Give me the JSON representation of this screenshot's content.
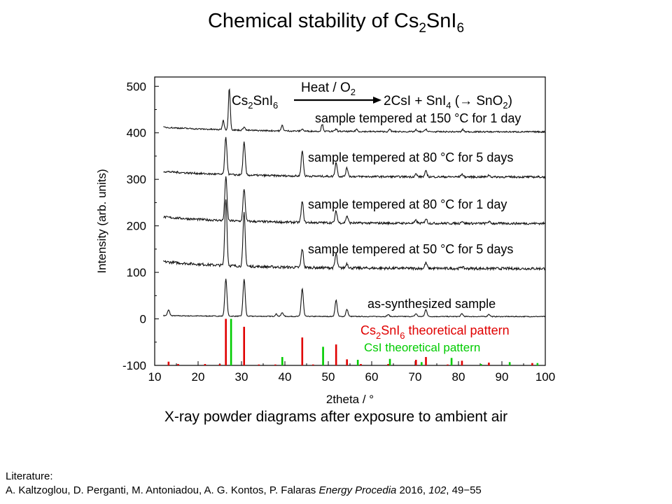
{
  "slide": {
    "title_main": "Chemical stability of Cs",
    "title_sub1": "2",
    "title_mid": "SnI",
    "title_sub2": "6",
    "caption": "X-ray powder diagrams after exposure to ambient air",
    "literature_label": "Literature:",
    "citation_authors": "A. Kaltzoglou, D. Perganti, M. Antoniadou, A. G. Kontos, P. Falaras ",
    "citation_journal": "Energy Procedia",
    "citation_year": " 2016, ",
    "citation_volume": "102",
    "citation_pages": ", 49−55"
  },
  "chart_data": {
    "type": "line",
    "xlabel": "2theta / °",
    "ylabel": "Intensity (arb. units)",
    "xlim": [
      10,
      100
    ],
    "ylim": [
      -100,
      520
    ],
    "xticks": [
      10,
      20,
      30,
      40,
      50,
      60,
      70,
      80,
      90,
      100
    ],
    "yticks": [
      -100,
      0,
      100,
      200,
      300,
      400,
      500
    ],
    "reaction": {
      "reactant": "Cs2SnI6",
      "arrow_label": "Heat / O2",
      "products": "2CsI + SnI4 (→ SnO2)"
    },
    "series": [
      {
        "name": "as-synthesized sample",
        "baseline": 5,
        "peaks": [
          [
            13.2,
            12
          ],
          [
            26.4,
            80
          ],
          [
            30.6,
            80
          ],
          [
            38.0,
            5
          ],
          [
            39.4,
            8
          ],
          [
            44.0,
            60
          ],
          [
            51.8,
            35
          ],
          [
            54.3,
            15
          ],
          [
            63.8,
            4
          ],
          [
            70.2,
            6
          ],
          [
            72.5,
            15
          ],
          [
            80.8,
            6
          ],
          [
            87.0,
            5
          ]
        ]
      },
      {
        "name": "sample tempered at 50 °C for 5 days",
        "baseline": 108,
        "peaks": [
          [
            26.4,
            145
          ],
          [
            30.6,
            115
          ],
          [
            44.0,
            40
          ],
          [
            51.8,
            30
          ],
          [
            54.3,
            10
          ],
          [
            72.5,
            12
          ],
          [
            80.8,
            4
          ]
        ]
      },
      {
        "name": "sample tempered at 80 °C for 1 day",
        "baseline": 205,
        "peaks": [
          [
            26.4,
            95
          ],
          [
            30.6,
            70
          ],
          [
            44.0,
            45
          ],
          [
            51.8,
            25
          ],
          [
            54.3,
            15
          ],
          [
            70.2,
            6
          ],
          [
            72.5,
            10
          ],
          [
            80.8,
            5
          ],
          [
            87.0,
            4
          ]
        ]
      },
      {
        "name": "sample tempered at 80 °C for 5 days",
        "baseline": 305,
        "peaks": [
          [
            26.4,
            80
          ],
          [
            30.6,
            70
          ],
          [
            44.0,
            55
          ],
          [
            51.8,
            30
          ],
          [
            54.3,
            18
          ],
          [
            70.2,
            6
          ],
          [
            72.5,
            12
          ],
          [
            80.8,
            6
          ],
          [
            87.0,
            4
          ]
        ]
      },
      {
        "name": "sample tempered at 150 °C for 1 day",
        "baseline": 402,
        "peaks": [
          [
            25.8,
            20
          ],
          [
            27.2,
            90
          ],
          [
            30.6,
            8
          ],
          [
            39.4,
            12
          ],
          [
            44.0,
            5
          ],
          [
            48.6,
            15
          ],
          [
            51.8,
            5
          ],
          [
            56.5,
            5
          ],
          [
            64.2,
            5
          ],
          [
            70.2,
            4
          ],
          [
            72.5,
            6
          ],
          [
            81.0,
            5
          ]
        ]
      }
    ],
    "reference_patterns": [
      {
        "name": "Cs2SnI6 theoretical pattern",
        "color": "#e00000",
        "lines": [
          [
            13.2,
            8
          ],
          [
            15.4,
            3
          ],
          [
            21.6,
            3
          ],
          [
            25.0,
            3
          ],
          [
            26.4,
            100
          ],
          [
            30.6,
            83
          ],
          [
            34.0,
            2
          ],
          [
            37.8,
            2
          ],
          [
            39.4,
            5
          ],
          [
            44.0,
            60
          ],
          [
            46.5,
            2
          ],
          [
            51.8,
            45
          ],
          [
            54.3,
            13
          ],
          [
            57.5,
            3
          ],
          [
            63.8,
            3
          ],
          [
            70.2,
            12
          ],
          [
            72.5,
            18
          ],
          [
            77.5,
            2
          ],
          [
            80.8,
            10
          ],
          [
            87.0,
            6
          ],
          [
            97.0,
            5
          ]
        ]
      },
      {
        "name": "CsI theoretical pattern",
        "color": "#00cc00",
        "lines": [
          [
            27.6,
            100
          ],
          [
            39.4,
            18
          ],
          [
            48.8,
            40
          ],
          [
            56.8,
            12
          ],
          [
            64.2,
            14
          ],
          [
            71.5,
            7
          ],
          [
            78.4,
            16
          ],
          [
            85.2,
            3
          ],
          [
            91.8,
            7
          ],
          [
            98.2,
            5
          ]
        ]
      }
    ]
  }
}
